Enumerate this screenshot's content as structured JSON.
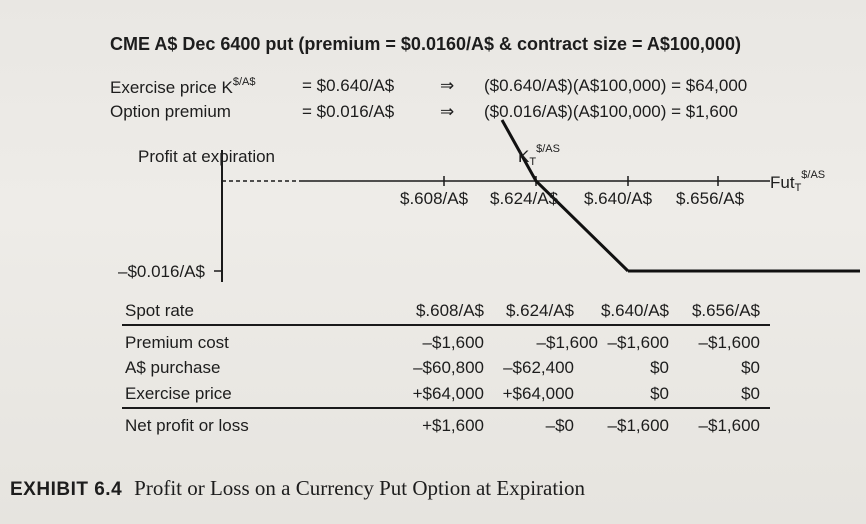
{
  "title": "CME A$ Dec 6400 put (premium = $0.0160/A$ & contract size = A$100,000)",
  "exercise": {
    "label": "Exercise price K",
    "label_sup": "$/A$",
    "value": "= $0.640/A$",
    "arrow": "⇒",
    "calc": "($0.640/A$)(A$100,000) = $64,000"
  },
  "premium": {
    "label": "Option premium",
    "value": "= $0.016/A$",
    "arrow": "⇒",
    "calc": "($0.016/A$)(A$100,000) =  $1,600"
  },
  "graph": {
    "y_label": "Profit at expiration",
    "y_value": "–$0.016/A$",
    "k_label": "K",
    "k_sub": "T",
    "k_sup": "$/AS",
    "fut_label": "Fut",
    "fut_sub": "T",
    "fut_sup": "$/AS",
    "ticks": [
      "$.608/A$",
      "$.624/A$",
      "$.640/A$",
      "$.656/A$"
    ]
  },
  "chart_data": {
    "type": "line",
    "x": [
      0.608,
      0.624,
      0.64,
      0.656
    ],
    "series": [
      {
        "values": [
          0.016,
          0.0,
          -0.016,
          -0.016
        ]
      }
    ]
  },
  "table": {
    "rows": [
      {
        "label": "Spot rate",
        "values": [
          "$.608/A$",
          "$.624/A$",
          "$.640/A$",
          "$.656/A$"
        ]
      },
      {
        "label": "Premium cost",
        "values": [
          "–$1,600",
          "–$1,600",
          "–$1,600",
          "–$1,600"
        ]
      },
      {
        "label": "A$ purchase",
        "values": [
          "–$60,800",
          "–$62,400",
          "$0",
          "$0"
        ]
      },
      {
        "label": "Exercise price",
        "values": [
          "+$64,000",
          "+$64,000",
          "$0",
          "$0"
        ]
      },
      {
        "label": "Net profit or loss",
        "values": [
          "+$1,600",
          "–$0",
          "–$1,600",
          "–$1,600"
        ]
      }
    ]
  },
  "caption": {
    "exhibit": "EXHIBIT 6.4",
    "text": "Profit or Loss on a Currency Put Option at Expiration"
  }
}
